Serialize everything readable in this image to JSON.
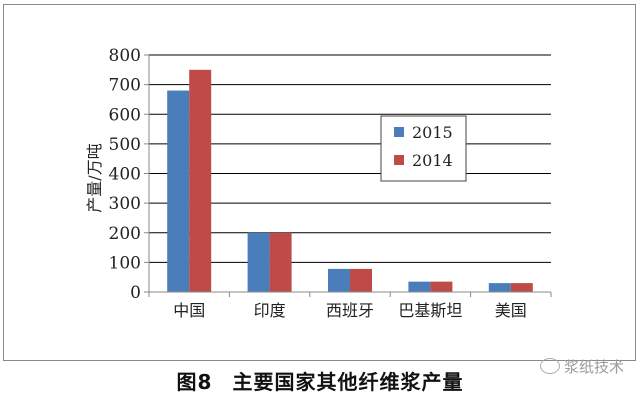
{
  "caption": {
    "number": "图8",
    "text": "主要国家其他纤维浆产量"
  },
  "watermark": {
    "text": "浆纸技术",
    "icon": "wechat-icon"
  },
  "chart_data": {
    "type": "bar",
    "ylabel": "产量/万吨",
    "ylim": [
      0,
      800
    ],
    "yticks": [
      0,
      100,
      200,
      300,
      400,
      500,
      600,
      700,
      800
    ],
    "grid": true,
    "legend": "top-right",
    "categories": [
      "中国",
      "印度",
      "西班牙",
      "巴基斯坦",
      "美国"
    ],
    "series": [
      {
        "name": "2015",
        "color": "#4a7ebb",
        "values": [
          680,
          200,
          78,
          35,
          30
        ]
      },
      {
        "name": "2014",
        "color": "#be4b48",
        "values": [
          750,
          200,
          78,
          35,
          30
        ]
      }
    ]
  }
}
